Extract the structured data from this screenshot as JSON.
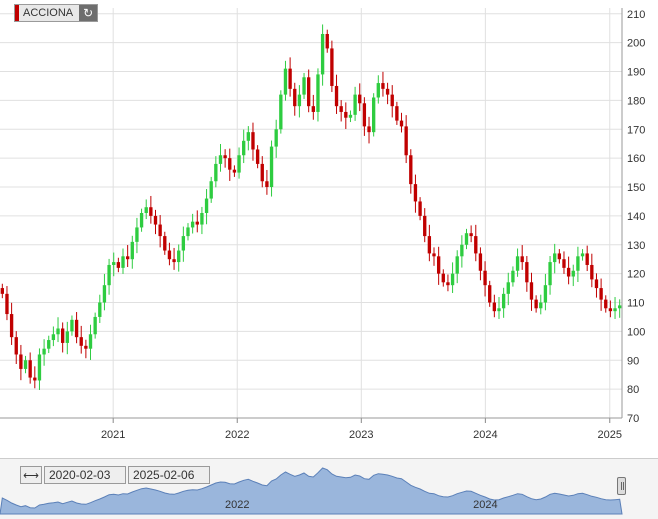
{
  "ticker": {
    "name": "ACCIONA",
    "color": "#c00000"
  },
  "range_selector": {
    "from": "2020-02-03",
    "to": "2025-02-06"
  },
  "navigator": {
    "labels": [
      "2022",
      "2024"
    ],
    "fill": "#9ab6dc",
    "line": "#5b80b8"
  },
  "chart_data": {
    "type": "candlestick",
    "up_color": "#2ecc40",
    "down_color": "#c00000",
    "ylim": [
      70,
      212
    ],
    "yticks": [
      70,
      80,
      90,
      100,
      110,
      120,
      130,
      140,
      150,
      160,
      170,
      180,
      190,
      200,
      210
    ],
    "xticks": [
      "2021",
      "2022",
      "2023",
      "2024",
      "2025"
    ],
    "xlim": [
      "2020-02-03",
      "2025-02-06"
    ],
    "grid": true,
    "close": [
      113,
      106,
      98,
      92,
      87,
      90,
      84,
      83,
      92,
      94,
      97,
      99,
      101,
      96,
      100,
      104,
      98,
      95,
      94,
      99,
      105,
      110,
      116,
      123,
      124,
      122,
      126,
      125,
      131,
      136,
      141,
      143,
      140,
      137,
      133,
      128,
      125,
      124,
      128,
      133,
      136,
      138,
      137,
      141,
      146,
      152,
      158,
      161,
      160,
      156,
      155,
      161,
      166,
      169,
      163,
      158,
      152,
      150,
      164,
      170,
      182,
      191,
      184,
      178,
      182,
      188,
      178,
      176,
      189,
      203,
      198,
      185,
      178,
      176,
      174,
      175,
      182,
      179,
      171,
      169,
      181,
      186,
      184,
      182,
      178,
      173,
      171,
      161,
      151,
      145,
      140,
      133,
      127,
      126,
      120,
      117,
      116,
      120,
      126,
      130,
      134,
      133,
      127,
      121,
      116,
      110,
      107,
      108,
      113,
      117,
      121,
      126,
      124,
      117,
      111,
      108,
      110,
      116,
      124,
      127,
      125,
      122,
      119,
      121,
      126,
      127,
      123,
      118,
      115,
      111,
      108,
      107,
      108,
      109
    ]
  }
}
